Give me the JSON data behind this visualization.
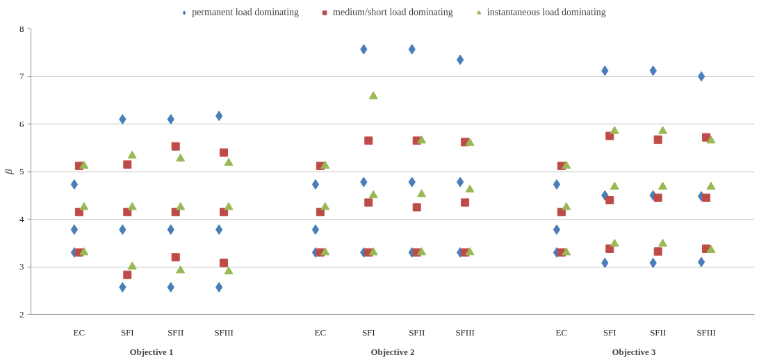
{
  "chart_data": {
    "type": "scatter",
    "ylabel": "β",
    "ylim": [
      2,
      8
    ],
    "yticks": [
      2,
      3,
      4,
      5,
      6,
      7,
      8
    ],
    "categories": [
      "EC",
      "SFI",
      "SFII",
      "SFIII",
      null,
      "EC",
      "SFI",
      "SFII",
      "SFIII",
      null,
      "EC",
      "SFI",
      "SFII",
      "SFIII"
    ],
    "annotations": [
      "Objective 1",
      "Objective 2",
      "Objective 3"
    ],
    "grid": "y",
    "legend": "top",
    "series": [
      {
        "name": "permanent load dominating",
        "color": "#4a7ebb",
        "marker": "diamond",
        "values": [
          4.73,
          6.1,
          6.1,
          6.17,
          null,
          4.73,
          7.57,
          7.57,
          7.35,
          null,
          4.73,
          7.12,
          7.12,
          7.0
        ]
      },
      {
        "color": "#4a7ebb",
        "marker": "diamond",
        "values": [
          3.78,
          3.78,
          3.78,
          3.78,
          null,
          3.78,
          4.78,
          4.78,
          4.78,
          null,
          3.78,
          4.5,
          4.5,
          4.48
        ]
      },
      {
        "color": "#4a7ebb",
        "marker": "diamond",
        "values": [
          3.3,
          2.57,
          2.57,
          2.57,
          null,
          3.3,
          3.3,
          3.3,
          3.3,
          null,
          3.3,
          3.08,
          3.08,
          3.1
        ]
      },
      {
        "name": "medium/short load dominating",
        "color": "#be4b48",
        "marker": "square",
        "values": [
          5.12,
          5.15,
          5.53,
          5.4,
          null,
          5.12,
          5.65,
          5.65,
          5.62,
          null,
          5.12,
          5.75,
          5.67,
          5.72
        ]
      },
      {
        "color": "#be4b48",
        "marker": "square",
        "values": [
          4.15,
          4.15,
          4.15,
          4.15,
          null,
          4.15,
          4.35,
          4.25,
          4.35,
          null,
          4.15,
          4.4,
          4.45,
          4.45
        ]
      },
      {
        "color": "#be4b48",
        "marker": "square",
        "values": [
          3.3,
          2.83,
          3.2,
          3.08,
          null,
          3.3,
          3.3,
          3.3,
          3.3,
          null,
          3.3,
          3.38,
          3.32,
          3.38
        ]
      },
      {
        "name": "instantaneous load dominating",
        "color": "#98b954",
        "marker": "triangle",
        "values": [
          5.12,
          5.33,
          5.27,
          5.18,
          null,
          5.12,
          6.58,
          5.65,
          5.6,
          null,
          5.12,
          5.85,
          5.85,
          5.65
        ]
      },
      {
        "color": "#98b954",
        "marker": "triangle",
        "values": [
          4.25,
          4.25,
          4.25,
          4.25,
          null,
          4.25,
          4.5,
          4.52,
          4.62,
          null,
          4.25,
          4.68,
          4.68,
          4.68
        ]
      },
      {
        "color": "#98b954",
        "marker": "triangle",
        "values": [
          3.3,
          3.0,
          2.92,
          2.9,
          null,
          3.3,
          3.3,
          3.3,
          3.3,
          null,
          3.3,
          3.48,
          3.48,
          3.35
        ]
      }
    ]
  }
}
